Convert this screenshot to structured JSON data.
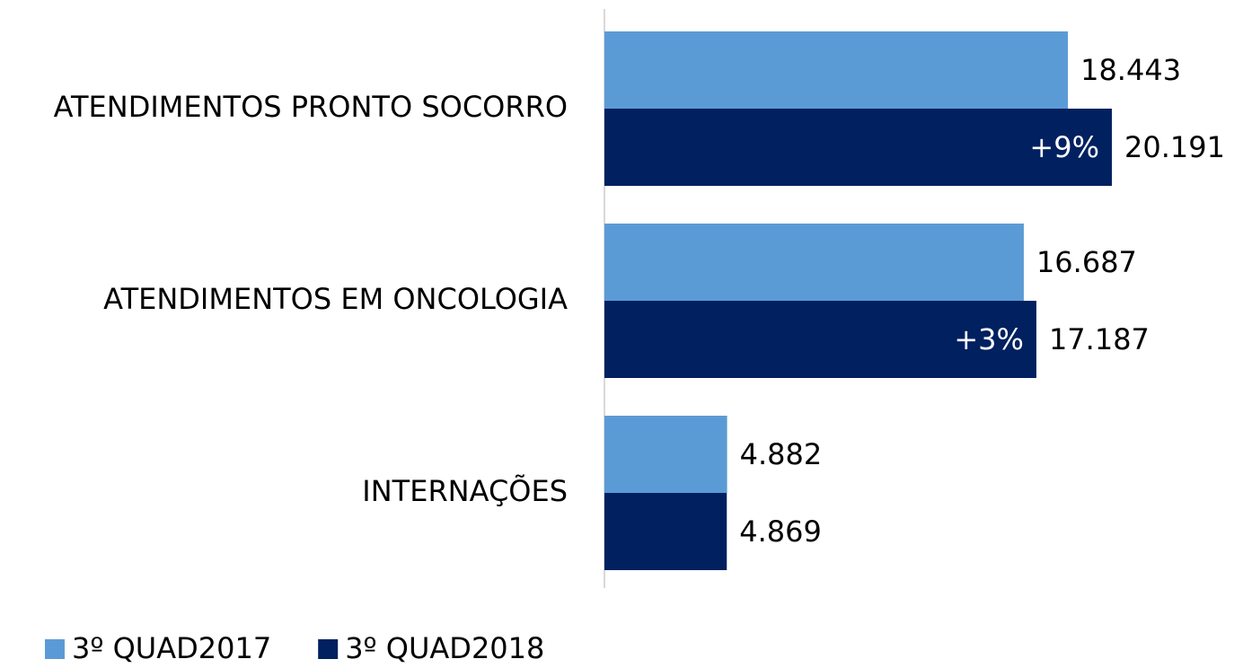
{
  "chart_data": {
    "type": "hbar",
    "categories": [
      "ATENDIMENTOS PRONTO SOCORRO",
      "ATENDIMENTOS EM ONCOLOGIA",
      "INTERNAÇÕES"
    ],
    "series": [
      {
        "name": "3º QUAD2017",
        "color": "#5b9bd5",
        "values": [
          18443,
          16687,
          4882
        ],
        "value_labels": [
          "18.443",
          "16.687",
          "4.882"
        ]
      },
      {
        "name": "3º QUAD2018",
        "color": "#002060",
        "values": [
          20191,
          17187,
          4869
        ],
        "value_labels": [
          "20.191",
          "17.187",
          "4.869"
        ]
      }
    ],
    "annotations": [
      "+9%",
      "+3%",
      null
    ],
    "legend": "bottom-left"
  }
}
